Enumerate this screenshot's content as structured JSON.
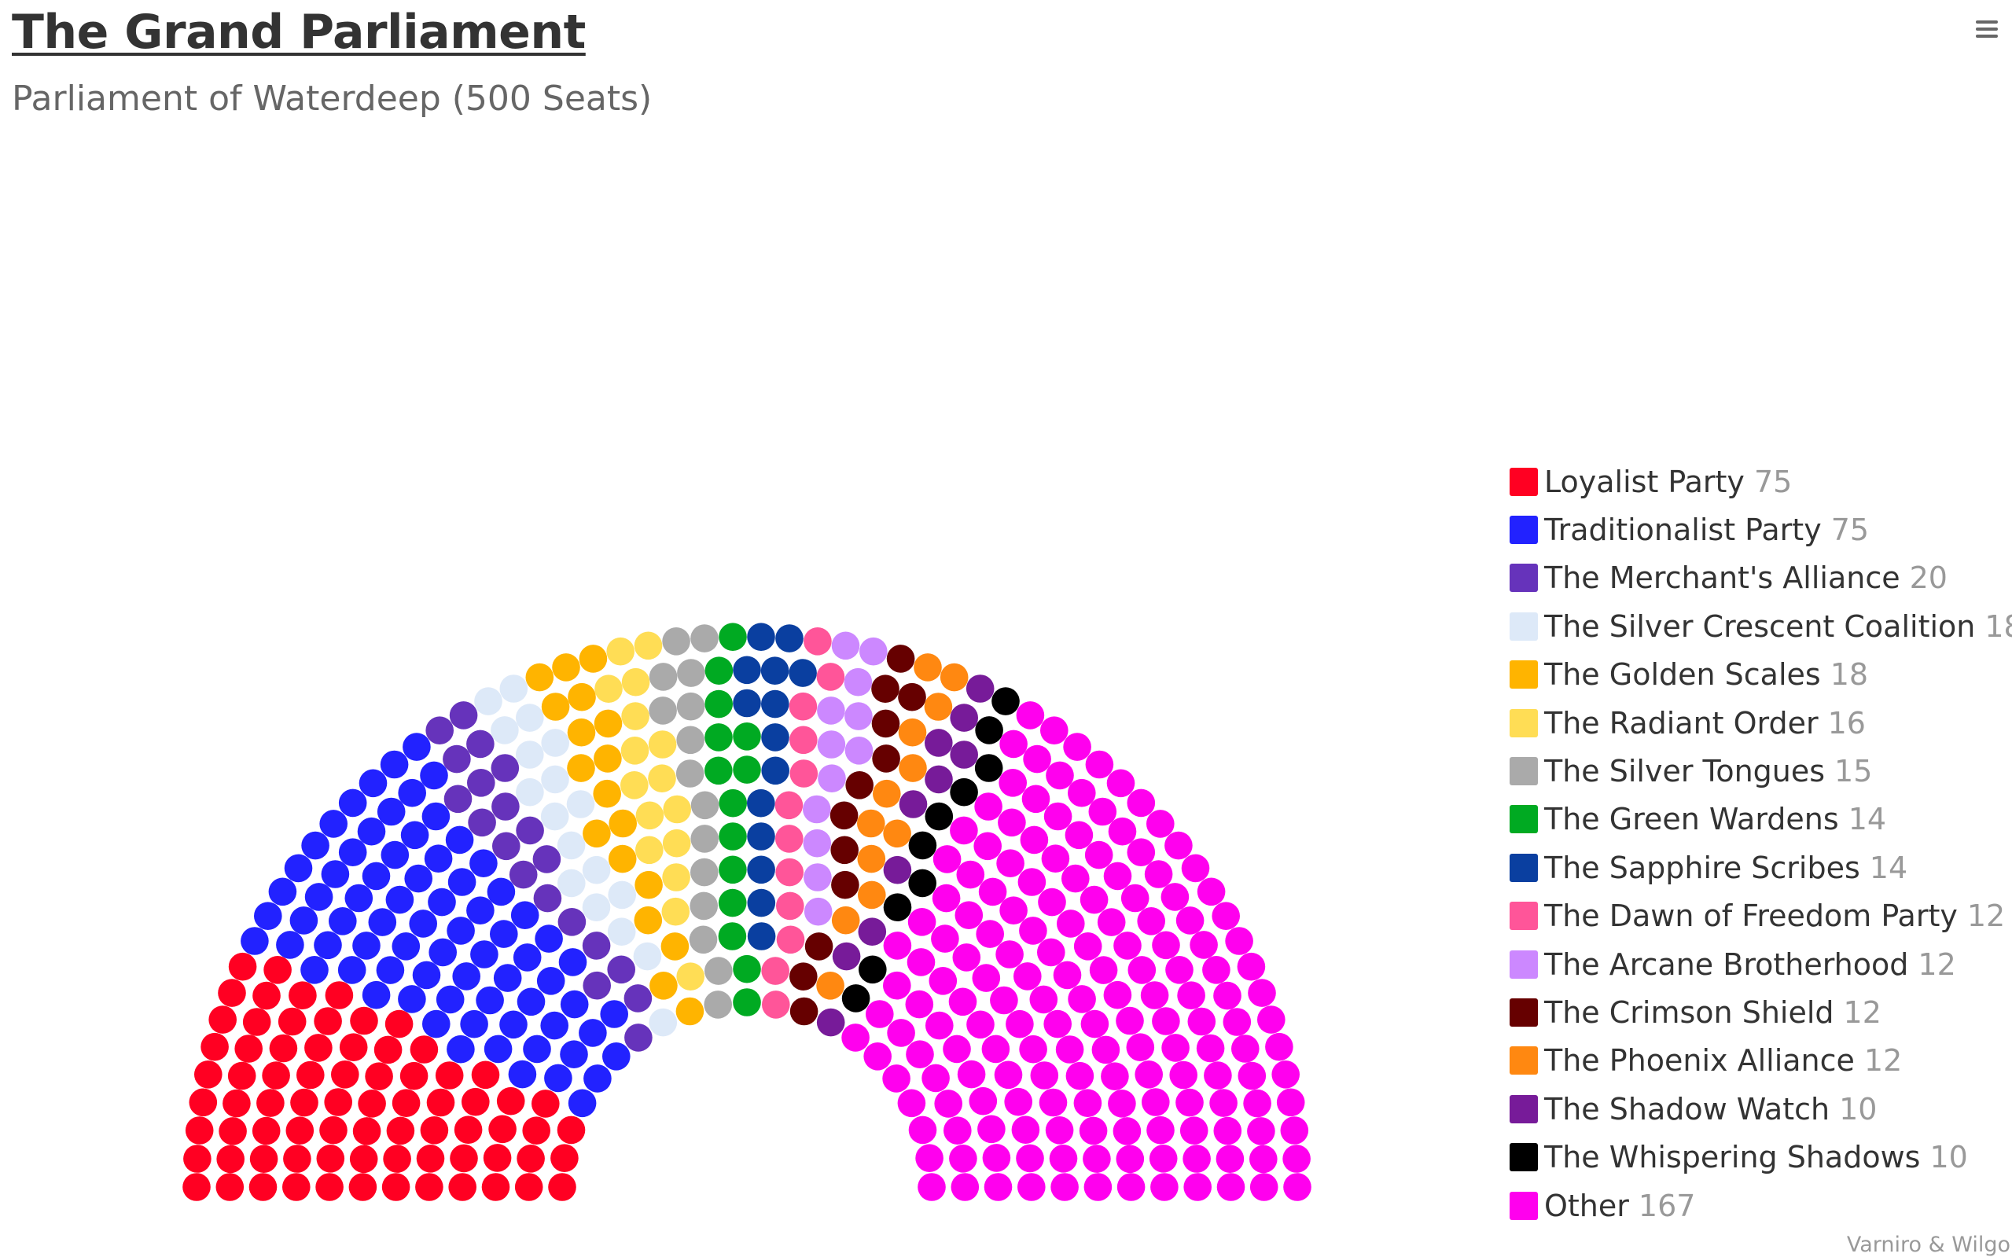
{
  "header": {
    "title": "The Grand Parliament",
    "subtitle": "Parliament of Waterdeep (500 Seats)"
  },
  "credits": "Varniro & Wilgo",
  "chart_data": {
    "type": "parliament",
    "title": "The Grand Parliament",
    "subtitle": "Parliament of Waterdeep (500 Seats)",
    "total_seats": 500,
    "legend_position": "right",
    "series": [
      {
        "name": "Loyalist Party",
        "seats": 75,
        "color": "#ff0022"
      },
      {
        "name": "Traditionalist Party",
        "seats": 75,
        "color": "#2222ff"
      },
      {
        "name": "The Merchant's Alliance",
        "seats": 20,
        "color": "#6633bb"
      },
      {
        "name": "The Silver Crescent Coalition",
        "seats": 18,
        "color": "#dde9f8"
      },
      {
        "name": "The Golden Scales",
        "seats": 18,
        "color": "#ffb400"
      },
      {
        "name": "The Radiant Order",
        "seats": 16,
        "color": "#ffdd55"
      },
      {
        "name": "The Silver Tongues",
        "seats": 15,
        "color": "#aaaaaa"
      },
      {
        "name": "The Green Wardens",
        "seats": 14,
        "color": "#00aa22"
      },
      {
        "name": "The Sapphire Scribes",
        "seats": 14,
        "color": "#0a3fa0"
      },
      {
        "name": "The Dawn of Freedom Party",
        "seats": 12,
        "color": "#ff5599"
      },
      {
        "name": "The Arcane Brotherhood",
        "seats": 12,
        "color": "#cc88ff"
      },
      {
        "name": "The Crimson Shield",
        "seats": 12,
        "color": "#660000"
      },
      {
        "name": "The Phoenix Alliance",
        "seats": 12,
        "color": "#ff8811"
      },
      {
        "name": "The Shadow Watch",
        "seats": 10,
        "color": "#771b99"
      },
      {
        "name": "The Whispering Shadows",
        "seats": 10,
        "color": "#000000"
      },
      {
        "name": "Other",
        "seats": 167,
        "color": "#ff00ee"
      }
    ]
  }
}
